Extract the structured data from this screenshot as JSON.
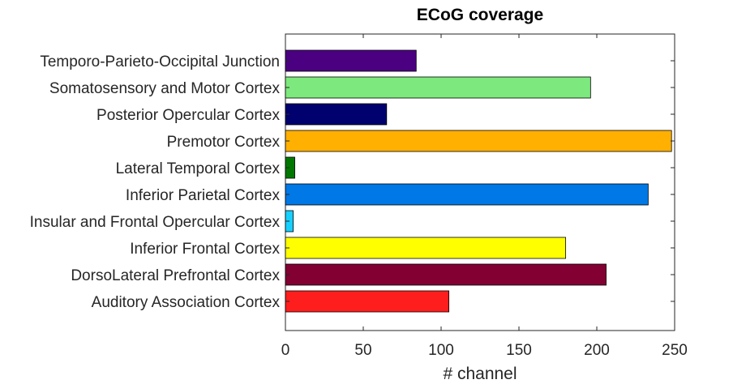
{
  "chart_data": {
    "type": "bar",
    "orientation": "horizontal",
    "title": "ECoG coverage",
    "xlabel": "# channel",
    "ylabel": "",
    "xlim": [
      0,
      250
    ],
    "xticks": [
      0,
      50,
      100,
      150,
      200,
      250
    ],
    "grid": false,
    "legend": "none",
    "categories": [
      "Temporo-Parieto-Occipital Junction",
      "Somatosensory and Motor Cortex",
      "Posterior Opercular Cortex",
      "Premotor Cortex",
      "Lateral Temporal Cortex",
      "Inferior Parietal Cortex",
      "Insular and Frontal Opercular Cortex",
      "Inferior Frontal Cortex",
      "DorsoLateral Prefrontal Cortex",
      "Auditory Association Cortex"
    ],
    "values": [
      84,
      196,
      65,
      248,
      6,
      233,
      5,
      180,
      206,
      105
    ],
    "colors": [
      "#4b0082",
      "#7de87d",
      "#00006e",
      "#ffb000",
      "#007800",
      "#0078e6",
      "#18d0ff",
      "#ffff00",
      "#820032",
      "#ff1e1e"
    ]
  }
}
